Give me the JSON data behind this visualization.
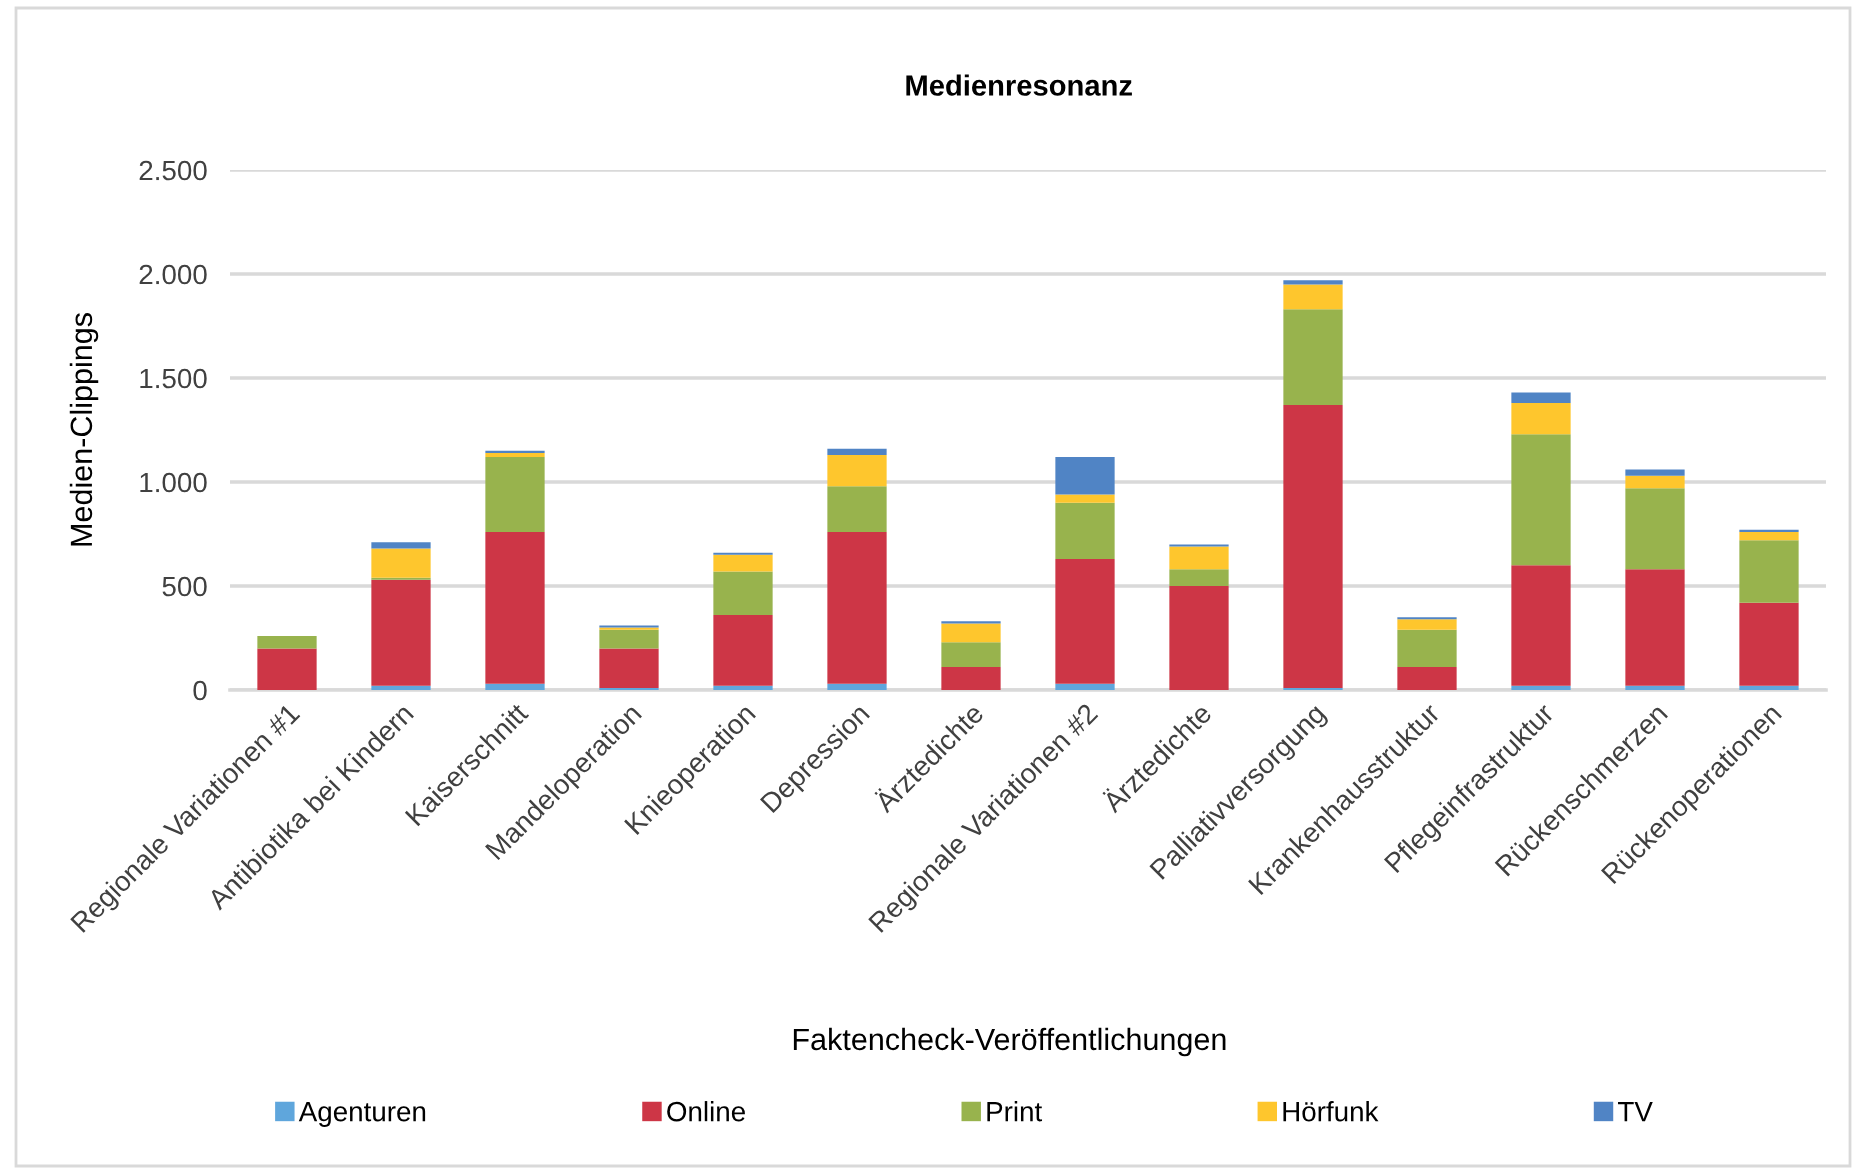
{
  "chart_data": {
    "type": "bar",
    "title": "Medienresonanz",
    "xlabel": "Faktencheck-Veröffentlichungen",
    "ylabel": "Medien-Clippings",
    "stacked": true,
    "categories": [
      "Regionale Variationen #1",
      "Antibiotika bei Kindern",
      "Kaiserschnitt",
      "Mandeloperation",
      "Knieoperation",
      "Depression",
      "Ärztedichte",
      "Regionale Variationen #2",
      "Ärztedichte",
      "Palliativversorgung",
      "Krankenhausstruktur",
      "Pflegeinfrastruktur",
      "Rückenschmerzen",
      "Rückenoperationen"
    ],
    "series": [
      {
        "name": "Agenturen",
        "color": "#5fa6dc",
        "values": [
          0,
          20,
          30,
          10,
          20,
          30,
          0,
          30,
          0,
          10,
          0,
          20,
          20,
          20
        ]
      },
      {
        "name": "Online",
        "color": "#cd3646",
        "values": [
          200,
          510,
          730,
          190,
          340,
          730,
          110,
          600,
          500,
          1360,
          110,
          580,
          560,
          400
        ]
      },
      {
        "name": "Print",
        "color": "#98b34d",
        "values": [
          60,
          10,
          360,
          90,
          210,
          220,
          120,
          270,
          80,
          460,
          180,
          630,
          390,
          300
        ]
      },
      {
        "name": "Hörfunk",
        "color": "#fec62d",
        "values": [
          0,
          140,
          20,
          10,
          80,
          150,
          90,
          40,
          110,
          120,
          50,
          150,
          60,
          40
        ]
      },
      {
        "name": "TV",
        "color": "#5084c5",
        "values": [
          0,
          30,
          10,
          10,
          10,
          30,
          10,
          180,
          10,
          20,
          10,
          50,
          30,
          10
        ]
      }
    ],
    "ylim": [
      0,
      2500
    ],
    "yticks": [
      0,
      500,
      {
        "value": 1000,
        "label": "1.000"
      },
      {
        "value": 1500,
        "label": "1.500"
      },
      {
        "value": 2000,
        "label": "2.000"
      },
      {
        "value": 2500,
        "label": "2.500"
      }
    ],
    "grid": "y",
    "legend": "bottom"
  }
}
